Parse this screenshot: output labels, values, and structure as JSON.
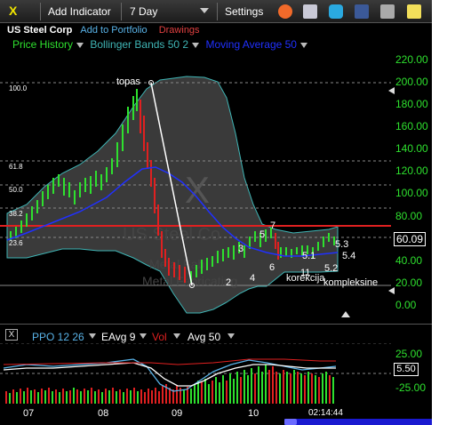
{
  "toolbar": {
    "close_label": "X",
    "add_indicator": "Add Indicator",
    "period": "7 Day",
    "settings": "Settings",
    "icons": [
      "alarm-clock-icon",
      "layers-icon",
      "twitter-icon",
      "facebook-icon",
      "camera-icon",
      "note-icon"
    ]
  },
  "header": {
    "symbol": "US Steel Corp",
    "add_portfolio": "Add to Portfolio",
    "drawings": "Drawings"
  },
  "indicators": {
    "price_history": "Price History",
    "bollinger": "Bollinger Bands 50 2",
    "moving_average": "Moving Average 50"
  },
  "y_axis_labels": [
    "220.00",
    "200.00",
    "180.00",
    "160.00",
    "140.00",
    "120.00",
    "100.00",
    "80.00",
    "60.00",
    "40.00",
    "20.00",
    "0.00"
  ],
  "current_price": "60.09",
  "fib_levels": [
    "100.0",
    "61.8",
    "50.0",
    "38.2",
    "23.6"
  ],
  "annotations": {
    "topas": "topas",
    "wave_2": "2",
    "wave_3": "3",
    "wave_4": "4",
    "wave_5": "5",
    "wave_6": "6",
    "wave_7": "7",
    "wave_11": "11",
    "wave_51": "5.1",
    "wave_52": "5.2",
    "wave_53": "5.3",
    "wave_54": "5.4",
    "korekcija": "korekcija",
    "kompleksine": "kompleksine"
  },
  "watermark": {
    "big_x": "X",
    "text1": "US Steel Co",
    "text2": "Metal Fab",
    "text3": "Metal Fabricating"
  },
  "lower_panel": {
    "ppo": "PPO 12 26",
    "eavg": "EAvg 9",
    "vol": "Vol",
    "avg": "Avg 50",
    "close": "X",
    "y_top": "25.00",
    "y_bottom": "-25.00",
    "current_value": "5.50"
  },
  "x_axis": [
    "07",
    "08",
    "09",
    "10"
  ],
  "time": "02:14:44",
  "colors": {
    "price": "#2ee02e",
    "bollinger": "#3fb5b5",
    "moving_average": "#2030ff",
    "drawings": "#e04040",
    "link": "#59b3e8"
  }
}
